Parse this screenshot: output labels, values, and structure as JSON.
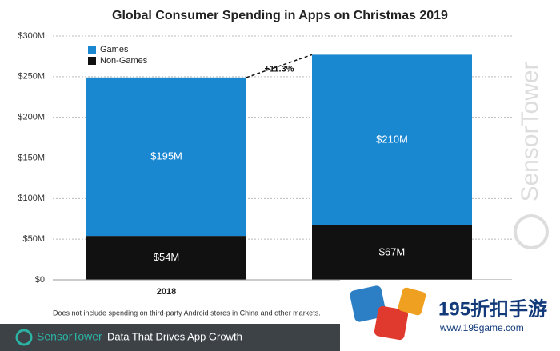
{
  "chart_data": {
    "type": "bar",
    "stacked": true,
    "title": "Global Consumer Spending in Apps on Christmas 2019",
    "categories": [
      "2018",
      null
    ],
    "series": [
      {
        "name": "Games",
        "color": "#1a87d1",
        "values": [
          195,
          210
        ],
        "value_labels": [
          "$195M",
          "$210M"
        ]
      },
      {
        "name": "Non-Games",
        "color": "#111111",
        "values": [
          54,
          67
        ],
        "value_labels": [
          "$54M",
          "$67M"
        ]
      }
    ],
    "ylim": [
      0,
      300
    ],
    "yticks": [
      {
        "value": 0,
        "label": "$0"
      },
      {
        "value": 50,
        "label": "$50M"
      },
      {
        "value": 100,
        "label": "$100M"
      },
      {
        "value": 150,
        "label": "$150M"
      },
      {
        "value": 200,
        "label": "$200M"
      },
      {
        "value": 250,
        "label": "$250M"
      },
      {
        "value": 300,
        "label": "$300M"
      }
    ],
    "grid": true,
    "annotation": "+11.3%",
    "footnote": "Does not include spending on third-party Android stores in China and other markets."
  },
  "watermark": "SensorTower",
  "footer": {
    "brand": "SensorTower",
    "tagline": "Data That Drives App Growth"
  },
  "overlay": {
    "name": "195折扣手游",
    "url": "www.195game.com"
  }
}
